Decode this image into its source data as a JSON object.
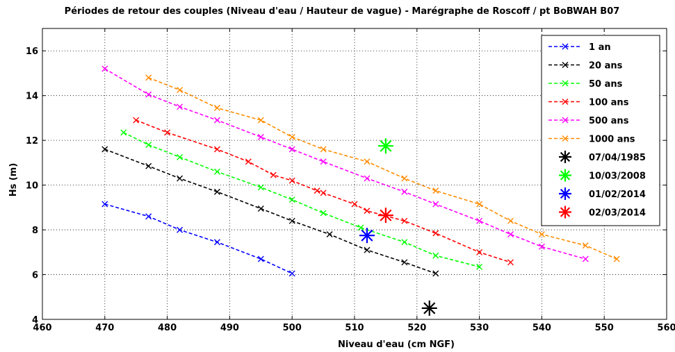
{
  "chart_data": {
    "type": "line",
    "title": "Périodes de retour des couples (Niveau d'eau / Hauteur de vague) - Marégraphe de Roscoff / pt BoBWAH B07",
    "xlabel": "Niveau d'eau (cm NGF)",
    "ylabel": "Hs (m)",
    "xlim": [
      460,
      560
    ],
    "ylim": [
      4,
      17
    ],
    "xticks": [
      "460",
      "470",
      "480",
      "490",
      "500",
      "510",
      "520",
      "530",
      "540",
      "550",
      "560"
    ],
    "yticks": [
      "4",
      "6",
      "8",
      "10",
      "12",
      "14",
      "16"
    ],
    "grid": true,
    "legend_position": "top-right",
    "series": [
      {
        "name": "1 an",
        "color": "#0000ff",
        "marker": "x",
        "x": [
          470,
          477,
          482,
          488,
          495,
          500
        ],
        "y": [
          9.15,
          8.6,
          8.0,
          7.45,
          6.7,
          6.05
        ]
      },
      {
        "name": "20 ans",
        "color": "#000000",
        "marker": "x",
        "x": [
          470,
          477,
          482,
          488,
          495,
          500,
          506,
          512,
          518,
          523
        ],
        "y": [
          11.6,
          10.85,
          10.3,
          9.7,
          8.95,
          8.4,
          7.8,
          7.1,
          6.55,
          6.05
        ]
      },
      {
        "name": "50 ans",
        "color": "#00ff00",
        "marker": "x",
        "x": [
          473,
          477,
          482,
          488,
          495,
          500,
          505,
          511,
          518,
          523,
          530
        ],
        "y": [
          12.35,
          11.8,
          11.25,
          10.6,
          9.9,
          9.35,
          8.75,
          8.1,
          7.45,
          6.85,
          6.35
        ]
      },
      {
        "name": "100 ans",
        "color": "#ff0000",
        "marker": "x",
        "x": [
          475,
          480,
          488,
          493,
          497,
          500,
          504,
          505,
          510,
          512,
          518,
          523,
          530,
          535
        ],
        "y": [
          12.9,
          12.35,
          11.6,
          11.05,
          10.45,
          10.2,
          9.75,
          9.65,
          9.15,
          8.85,
          8.4,
          7.85,
          7.0,
          6.55
        ]
      },
      {
        "name": "500 ans",
        "color": "#ff00ff",
        "marker": "x",
        "x": [
          470,
          477,
          482,
          488,
          495,
          500,
          505,
          512,
          518,
          523,
          530,
          535,
          540,
          547
        ],
        "y": [
          15.2,
          14.05,
          13.5,
          12.9,
          12.15,
          11.6,
          11.05,
          10.3,
          9.7,
          9.15,
          8.4,
          7.8,
          7.25,
          6.7
        ]
      },
      {
        "name": "1000 ans",
        "color": "#ff8c00",
        "marker": "x",
        "x": [
          477,
          482,
          488,
          495,
          500,
          505,
          512,
          518,
          523,
          530,
          535,
          540,
          547,
          552
        ],
        "y": [
          14.8,
          14.25,
          13.45,
          12.9,
          12.15,
          11.6,
          11.05,
          10.3,
          9.75,
          9.15,
          8.4,
          7.8,
          7.3,
          6.7
        ]
      }
    ],
    "events": [
      {
        "name": "07/04/1985",
        "color": "#000000",
        "marker": "*",
        "x": 522,
        "y": 4.5
      },
      {
        "name": "10/03/2008",
        "color": "#00ff00",
        "marker": "*",
        "x": 515,
        "y": 11.75
      },
      {
        "name": "01/02/2014",
        "color": "#0000ff",
        "marker": "*",
        "x": 512,
        "y": 7.75
      },
      {
        "name": "02/03/2014",
        "color": "#ff0000",
        "marker": "*",
        "x": 515,
        "y": 8.65
      }
    ]
  }
}
